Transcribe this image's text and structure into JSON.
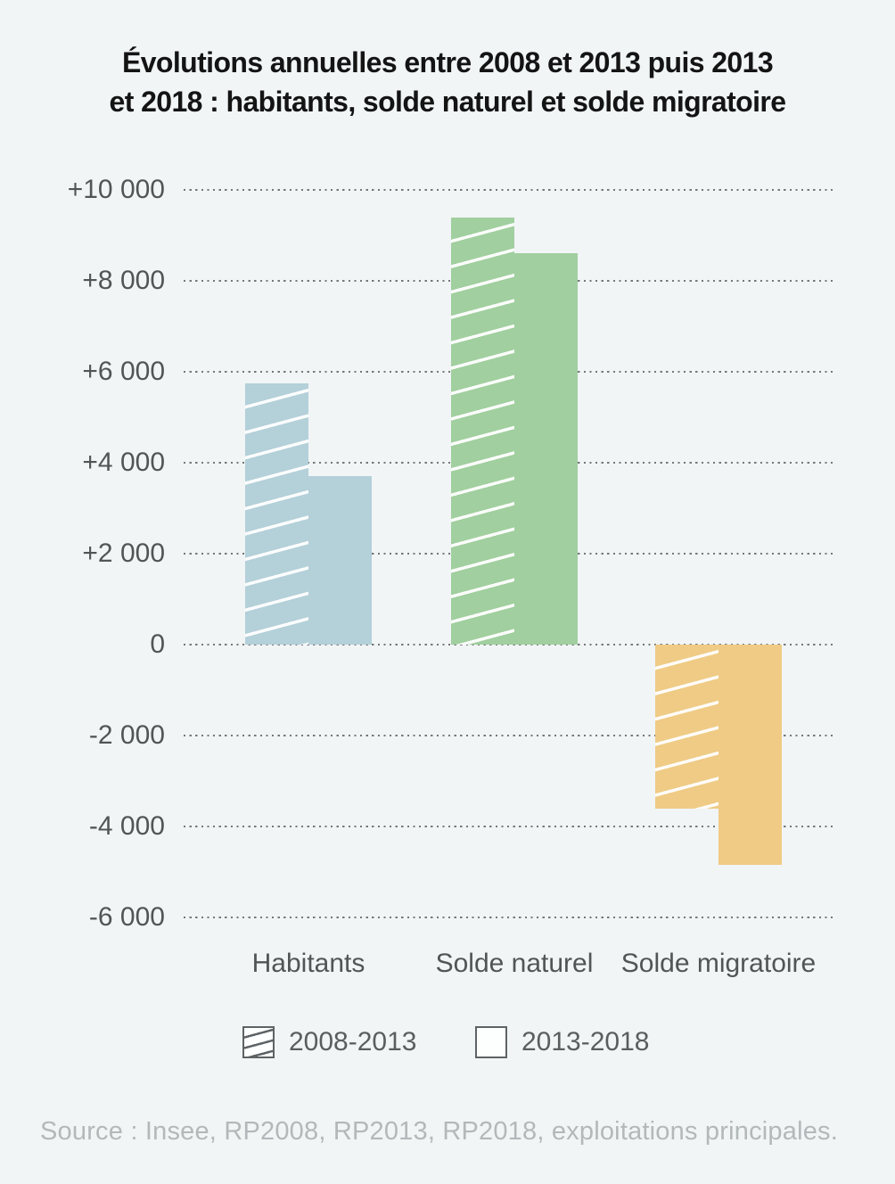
{
  "title": {
    "lines": [
      "Évolutions annuelles entre 2008 et 2013 puis 2013",
      "et 2018 : habitants, solde naturel et solde migratoire"
    ]
  },
  "y_axis": {
    "ticks": [
      {
        "label": "+10 000",
        "value": 10000
      },
      {
        "label": "+8 000",
        "value": 8000
      },
      {
        "label": "+6 000",
        "value": 6000
      },
      {
        "label": "+4 000",
        "value": 4000
      },
      {
        "label": "+2 000",
        "value": 2000
      },
      {
        "label": "0",
        "value": 0
      },
      {
        "label": "-2 000",
        "value": -2000
      },
      {
        "label": "-4 000",
        "value": -4000
      },
      {
        "label": "-6 000",
        "value": -6000
      }
    ]
  },
  "chart_data": {
    "type": "bar",
    "categories": [
      "Habitants",
      "Solde naturel",
      "Solde migratoire"
    ],
    "series": [
      {
        "name": "2008-2013",
        "style": "hatched",
        "values": [
          5750,
          9400,
          -3600
        ]
      },
      {
        "name": "2013-2018",
        "style": "solid",
        "values": [
          3700,
          8600,
          -4850
        ]
      }
    ],
    "colors": [
      "#b4d0d9",
      "#a1cf9f",
      "#efcb85"
    ],
    "ylim": [
      -6000,
      10000
    ],
    "grid": "horizontal-dotted",
    "legend_position": "bottom",
    "background": "#f1f5f6"
  },
  "legend": {
    "items": [
      {
        "label": "2008-2013",
        "swatch": "hatched"
      },
      {
        "label": "2013-2018",
        "swatch": "solid"
      }
    ]
  },
  "source": "Source : Insee, RP2008, RP2013, RP2018, exploitations principales."
}
